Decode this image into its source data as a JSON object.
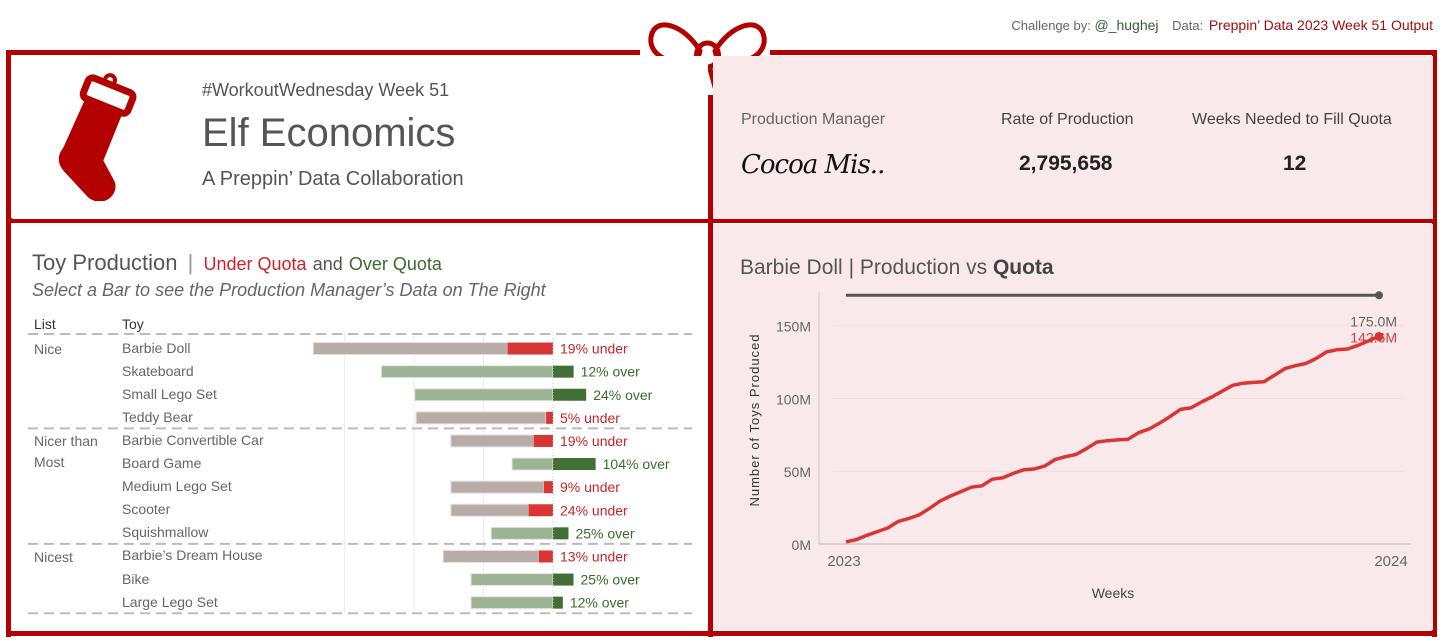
{
  "credits": {
    "challenge_label": "Challenge by:",
    "challenge_handle": "@_hughej",
    "data_label": "Data:",
    "data_source": "Preppin’ Data 2023 Week 51 Output"
  },
  "header": {
    "kicker": "#WorkoutWednesday Week 51",
    "title": "Elf Economics",
    "subtitle": "A Preppin’ Data Collaboration"
  },
  "kpis": {
    "manager_label": "Production Manager",
    "manager_value": "Cocoa Mis..",
    "rate_label": "Rate of Production",
    "rate_value": "2,795,658",
    "weeks_label": "Weeks Needed to Fill Quota",
    "weeks_value": "12"
  },
  "toy_panel": {
    "title": "Toy Production",
    "title_sep": "|",
    "under_label": "Under Quota",
    "and_label": "and",
    "over_label": "Over Quota",
    "subtitle": "Select a Bar to see the Production Manager’s Data on The Right",
    "col_list": "List",
    "col_toy": "Toy"
  },
  "colors": {
    "frame": "#b30000",
    "under_dark": "#d93535",
    "under_base": "#b8aca8",
    "over_dark": "#416f34",
    "over_base": "#9db394",
    "quota_line": "#555555",
    "production_line": "#d93535",
    "pink_bg": "#f9e9ea"
  },
  "chart_data": [
    {
      "type": "bar",
      "title": "Toy Production | Under Quota and Over Quota",
      "note": "Bar length = quota (relative units); dark segment = under/over amount",
      "groups": [
        {
          "list": "Nice",
          "toys": [
            {
              "toy": "Barbie Doll",
              "quota": 3.45,
              "pct": -19,
              "label": "19% under"
            },
            {
              "toy": "Skateboard",
              "quota": 2.47,
              "pct": 12,
              "label": "12% over"
            },
            {
              "toy": "Small Lego Set",
              "quota": 1.99,
              "pct": 24,
              "label": "24% over"
            },
            {
              "toy": "Teddy Bear",
              "quota": 1.97,
              "pct": -5,
              "label": "5% under"
            }
          ]
        },
        {
          "list": "Nicer than Most",
          "toys": [
            {
              "toy": "Barbie Convertible Car",
              "quota": 1.47,
              "pct": -19,
              "label": "19% under"
            },
            {
              "toy": "Board Game",
              "quota": 0.59,
              "pct": 104,
              "label": "104% over"
            },
            {
              "toy": "Medium Lego Set",
              "quota": 1.47,
              "pct": -9,
              "label": "9% under"
            },
            {
              "toy": "Scooter",
              "quota": 1.47,
              "pct": -24,
              "label": "24% under"
            },
            {
              "toy": "Squishmallow",
              "quota": 0.89,
              "pct": 25,
              "label": "25% over"
            }
          ]
        },
        {
          "list": "Nicest",
          "toys": [
            {
              "toy": "Barbie’s Dream House",
              "quota": 1.58,
              "pct": -13,
              "label": "13% under"
            },
            {
              "toy": "Bike",
              "quota": 1.18,
              "pct": 25,
              "label": "25% over"
            },
            {
              "toy": "Large Lego Set",
              "quota": 1.18,
              "pct": 12,
              "label": "12% over"
            }
          ]
        }
      ],
      "xlim": [
        -3.6,
        2.0
      ],
      "grid": true
    },
    {
      "type": "line",
      "title_toy": "Barbie Doll",
      "title_rest": "| Production vs",
      "title_bold": "Quota",
      "xlabel": "Weeks",
      "ylabel": "Number of Toys Produced",
      "x_ticks": [
        "2023",
        "2024"
      ],
      "y_ticks": [
        "0M",
        "50M",
        "100M",
        "150M"
      ],
      "y_tick_values": [
        0,
        50,
        100,
        150
      ],
      "ylim": [
        0,
        180
      ],
      "weeks": 52,
      "series": [
        {
          "name": "Quota",
          "constant": 175.0,
          "end_label": "175.0M"
        },
        {
          "name": "Production",
          "end_label": "142.6M",
          "values": [
            1.5,
            3.0,
            6.0,
            8.5,
            11.0,
            15.5,
            17.5,
            20.0,
            24.5,
            29.5,
            33.0,
            36.0,
            39.0,
            40.0,
            44.5,
            45.5,
            48.5,
            51.0,
            51.5,
            53.5,
            58.0,
            60.0,
            61.5,
            65.5,
            70.0,
            71.0,
            71.5,
            72.0,
            76.5,
            79.0,
            83.0,
            87.5,
            92.5,
            93.5,
            97.5,
            101.0,
            105.0,
            109.0,
            110.5,
            111.0,
            111.5,
            116.0,
            120.5,
            122.5,
            124.0,
            127.5,
            132.0,
            133.5,
            134.0,
            136.5,
            139.5,
            142.6
          ]
        }
      ]
    }
  ]
}
